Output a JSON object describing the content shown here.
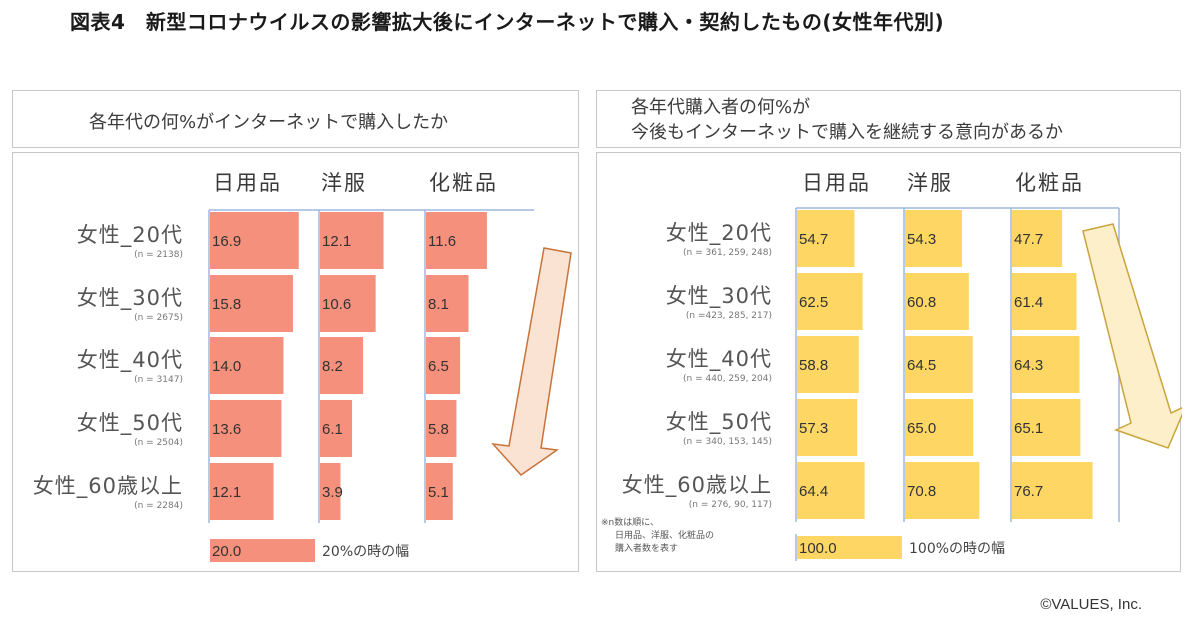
{
  "title": "図表4　新型コロナウイルスの影響拡大後にインターネットで購入・契約したもの(女性年代別)",
  "copyright": "©VALUES, Inc.",
  "colors": {
    "left_bar": "#f4907c",
    "right_bar": "#fdd663",
    "axis": "#9db7de",
    "left_arrow_fill": "#fbe3d3",
    "left_arrow_stroke": "#c8733a",
    "right_arrow_fill": "#fdefc9",
    "right_arrow_stroke": "#c9a43a"
  },
  "chart_data": [
    {
      "type": "bar",
      "orientation": "horizontal",
      "title": "各年代の何%がインターネットで購入したか",
      "categories": [
        "女性_20代",
        "女性_30代",
        "女性_40代",
        "女性_50代",
        "女性_60歳以上"
      ],
      "category_notes": [
        "(n = 2138)",
        "(n = 2675)",
        "(n = 3147)",
        "(n = 2504)",
        "(n = 2284)"
      ],
      "series": [
        {
          "name": "日用品",
          "values": [
            16.9,
            15.8,
            14.0,
            13.6,
            12.1
          ]
        },
        {
          "name": "洋服",
          "values": [
            12.1,
            10.6,
            8.2,
            6.1,
            3.9
          ]
        },
        {
          "name": "化粧品",
          "values": [
            11.6,
            8.1,
            6.5,
            5.8,
            5.1
          ]
        }
      ],
      "unit": "%",
      "scale_reference": {
        "value": "20.0",
        "label": "20%の時の幅",
        "amount": 20
      },
      "annotation": "arrow pointing down (decreasing with age)"
    },
    {
      "type": "bar",
      "orientation": "horizontal",
      "title": "各年代購入者の何%が\n今後もインターネットで購入を継続する意向があるか",
      "title_lines": [
        "各年代購入者の何%が",
        "今後もインターネットで購入を継続する意向があるか"
      ],
      "categories": [
        "女性_20代",
        "女性_30代",
        "女性_40代",
        "女性_50代",
        "女性_60歳以上"
      ],
      "category_notes": [
        "(n = 361, 259, 248)",
        "(n =423, 285, 217)",
        "(n = 440, 259, 204)",
        "(n = 340, 153, 145)",
        "(n = 276,  90, 117)"
      ],
      "series": [
        {
          "name": "日用品",
          "values": [
            54.7,
            62.5,
            58.8,
            57.3,
            64.4
          ]
        },
        {
          "name": "洋服",
          "values": [
            54.3,
            60.8,
            64.5,
            65.0,
            70.8
          ]
        },
        {
          "name": "化粧品",
          "values": [
            47.7,
            61.4,
            64.3,
            65.1,
            76.7
          ]
        }
      ],
      "unit": "%",
      "scale_reference": {
        "value": "100.0",
        "label": "100%の時の幅",
        "amount": 100
      },
      "footnote_lines": [
        "※n数は順に、",
        "日用品、洋服、化粧品の",
        "購入者数を表す"
      ],
      "annotation": "arrow pointing down-right (increasing with age)"
    }
  ]
}
